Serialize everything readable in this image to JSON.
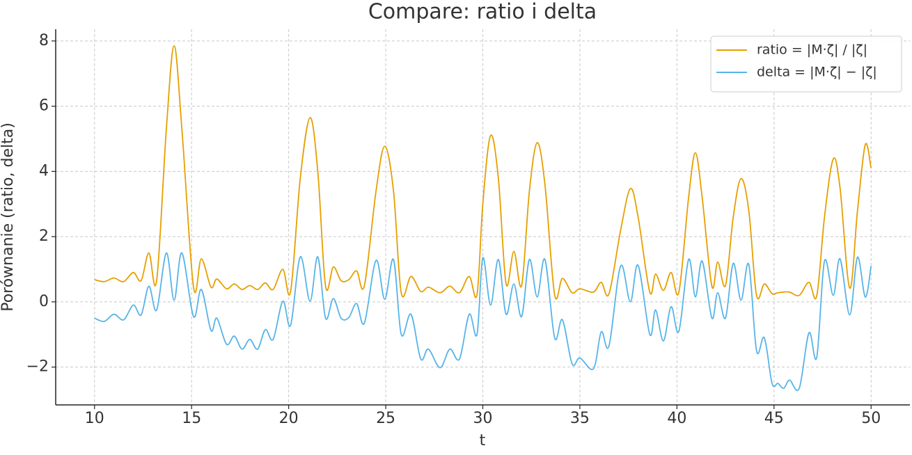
{
  "chart_data": {
    "type": "line",
    "title": "Compare: ratio i delta",
    "x_label": "t",
    "y_label": "Porównanie (ratio, delta)",
    "x": [
      10,
      10.5,
      11,
      11.5,
      12,
      12.4,
      12.8,
      13.2,
      13.7,
      14.1,
      14.5,
      15.1,
      15.5,
      16,
      16.3,
      16.8,
      17.2,
      17.6,
      18,
      18.4,
      18.8,
      19.2,
      19.7,
      20.1,
      20.6,
      21.1,
      21.5,
      21.9,
      22.3,
      22.7,
      23.1,
      23.5,
      23.9,
      24.5,
      24.95,
      25.4,
      25.8,
      26.3,
      26.8,
      27.2,
      27.8,
      28.3,
      28.8,
      29.3,
      29.7,
      30,
      30.4,
      30.8,
      31.2,
      31.6,
      32,
      32.4,
      32.8,
      33.2,
      33.7,
      34.1,
      34.6,
      35,
      35.7,
      36.1,
      36.5,
      37.1,
      37.6,
      38,
      38.6,
      38.9,
      39.3,
      39.7,
      40.1,
      40.6,
      40.95,
      41.3,
      41.8,
      42.1,
      42.5,
      42.9,
      43.3,
      43.7,
      44.1,
      44.5,
      44.9,
      45.2,
      45.5,
      45.8,
      46.3,
      46.8,
      47.2,
      47.6,
      48.05,
      48.4,
      48.9,
      49.3,
      49.7,
      50
    ],
    "series": [
      {
        "name": "ratio = |M·ζ| / |ζ|",
        "color": "#E69F00",
        "values": [
          0.68,
          0.62,
          0.73,
          0.62,
          0.9,
          0.65,
          1.5,
          0.65,
          5.3,
          7.85,
          5.3,
          0.45,
          1.32,
          0.45,
          0.7,
          0.4,
          0.55,
          0.38,
          0.5,
          0.38,
          0.58,
          0.38,
          1.0,
          0.32,
          3.8,
          5.65,
          4.0,
          0.48,
          1.07,
          0.65,
          0.68,
          0.95,
          0.5,
          3.4,
          4.77,
          3.4,
          0.27,
          0.78,
          0.32,
          0.45,
          0.28,
          0.48,
          0.28,
          0.78,
          0.22,
          3.0,
          5.1,
          3.8,
          0.55,
          1.55,
          0.5,
          3.4,
          4.88,
          3.6,
          0.22,
          0.72,
          0.28,
          0.4,
          0.3,
          0.6,
          0.25,
          2.2,
          3.47,
          2.6,
          0.3,
          0.85,
          0.35,
          0.9,
          0.3,
          3.2,
          4.57,
          3.2,
          0.48,
          1.22,
          0.5,
          2.6,
          3.78,
          2.8,
          0.2,
          0.55,
          0.25,
          0.28,
          0.3,
          0.3,
          0.2,
          0.6,
          0.18,
          2.6,
          4.38,
          3.5,
          0.42,
          2.8,
          4.82,
          4.1
        ]
      },
      {
        "name": "delta = |M·ζ| − |ζ|",
        "color": "#56B4E9",
        "values": [
          -0.5,
          -0.6,
          -0.38,
          -0.55,
          -0.1,
          -0.4,
          0.48,
          -0.25,
          1.5,
          0.05,
          1.5,
          -0.45,
          0.38,
          -0.88,
          -0.5,
          -1.3,
          -1.05,
          -1.45,
          -1.15,
          -1.45,
          -0.85,
          -1.15,
          0.02,
          -0.72,
          1.38,
          0.02,
          1.38,
          -0.5,
          0.1,
          -0.5,
          -0.48,
          -0.05,
          -0.65,
          1.27,
          0.08,
          1.3,
          -1.0,
          -0.38,
          -1.75,
          -1.45,
          -2.02,
          -1.45,
          -1.75,
          -0.38,
          -1.0,
          1.35,
          -0.1,
          1.3,
          -0.38,
          0.55,
          -0.45,
          1.3,
          0.15,
          1.3,
          -1.1,
          -0.55,
          -1.9,
          -1.72,
          -2.05,
          -0.92,
          -1.35,
          1.1,
          0.0,
          1.12,
          -1.0,
          -0.25,
          -1.2,
          -0.15,
          -0.9,
          1.3,
          0.15,
          1.25,
          -0.5,
          0.28,
          -0.5,
          1.18,
          0.05,
          1.15,
          -1.5,
          -1.1,
          -2.5,
          -2.5,
          -2.65,
          -2.4,
          -2.65,
          -0.95,
          -1.7,
          1.25,
          0.2,
          1.32,
          -0.4,
          1.37,
          0.15,
          1.1
        ]
      }
    ],
    "xlim": [
      8,
      52
    ],
    "ylim": [
      -3.16,
      8.36
    ],
    "xticks": [
      10,
      15,
      20,
      25,
      30,
      35,
      40,
      45,
      50
    ],
    "yticks": [
      {
        "value": -2,
        "label": "−2"
      },
      0,
      2,
      4,
      6,
      8
    ],
    "grid": true,
    "legend": "upper right"
  }
}
